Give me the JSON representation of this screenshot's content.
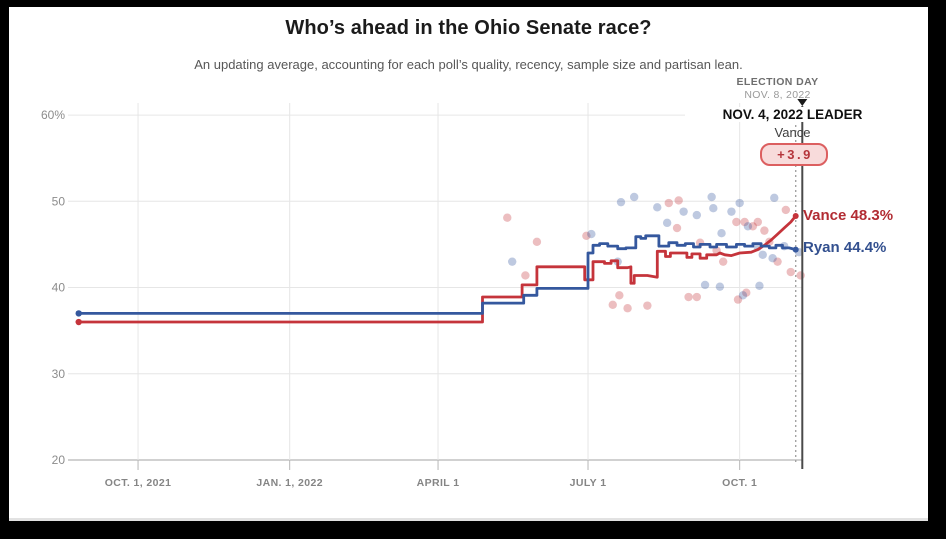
{
  "header": {
    "title": "Who’s ahead in the Ohio Senate race?",
    "subtitle": "An updating average, accounting for each poll’s quality, recency, sample size and partisan lean."
  },
  "colors": {
    "vance_line": "#c5343b",
    "ryan_line": "#35589e",
    "grid": "#e6e6e6",
    "axis": "#c2c2c2",
    "dotted_vline": "#a3a3a3",
    "solid_vline": "#4a4a4a"
  },
  "chart_data": {
    "type": "line",
    "title": "Who’s ahead in the Ohio Senate race?",
    "subtitle": "An updating average, accounting for each poll’s quality, recency, sample size and partisan lean.",
    "x_axis": {
      "unit": "days since Aug 1, 2021",
      "domain": [
        18.5,
        464
      ],
      "ticks": [
        {
          "t": 61,
          "label": "OCT. 1, 2021"
        },
        {
          "t": 153,
          "label": "JAN. 1, 2022"
        },
        {
          "t": 243,
          "label": "APRIL 1"
        },
        {
          "t": 334,
          "label": "JULY 1"
        },
        {
          "t": 426,
          "label": "OCT. 1"
        }
      ]
    },
    "y_axis": {
      "unit": "percent",
      "domain": [
        20,
        61.4
      ],
      "ticks": [
        {
          "v": 60,
          "label": "60%"
        },
        {
          "v": 50,
          "label": "50"
        },
        {
          "v": 40,
          "label": "40"
        },
        {
          "v": 30,
          "label": "30"
        },
        {
          "v": 20,
          "label": "20"
        }
      ]
    },
    "vlines": {
      "dotted_t": 460,
      "solid_t": 464
    },
    "annotations": {
      "election_day": {
        "line1": "ELECTION DAY",
        "line2": "NOV. 8, 2022"
      },
      "leader": {
        "title": "NOV. 4, 2022 LEADER",
        "name": "Vance",
        "margin": "+3.9"
      }
    },
    "series": [
      {
        "name": "Vance",
        "color": "#c5343b",
        "end_label": "Vance 48.3%",
        "final_value": 48.3,
        "points": [
          [
            25,
            36
          ],
          [
            270,
            36
          ],
          [
            270,
            38.9
          ],
          [
            294,
            38.9
          ],
          [
            294,
            40.3
          ],
          [
            303,
            40.3
          ],
          [
            303,
            42.4
          ],
          [
            332,
            42.4
          ],
          [
            332,
            40.9
          ],
          [
            337,
            40.9
          ],
          [
            337,
            43.0
          ],
          [
            344,
            43.0
          ],
          [
            344,
            42.8
          ],
          [
            348,
            42.8
          ],
          [
            348,
            43.1
          ],
          [
            352,
            43.1
          ],
          [
            352,
            42.3
          ],
          [
            358,
            42.3
          ],
          [
            360,
            42.4
          ],
          [
            360,
            40.5
          ],
          [
            362,
            40.5
          ],
          [
            362,
            41.4
          ],
          [
            370,
            41.4
          ],
          [
            376,
            41.2
          ],
          [
            376,
            44.2
          ],
          [
            381,
            44.2
          ],
          [
            381,
            43.6
          ],
          [
            384,
            43.6
          ],
          [
            384,
            44.0
          ],
          [
            394,
            44.0
          ],
          [
            394,
            43.5
          ],
          [
            397,
            43.5
          ],
          [
            397,
            43.9
          ],
          [
            402,
            43.9
          ],
          [
            402,
            43.4
          ],
          [
            406,
            43.4
          ],
          [
            406,
            43.8
          ],
          [
            412,
            43.8
          ],
          [
            414,
            44.0
          ],
          [
            417,
            43.8
          ],
          [
            421,
            43.7
          ],
          [
            426,
            44.0
          ],
          [
            433,
            44.1
          ],
          [
            437,
            44.4
          ],
          [
            441,
            44.9
          ],
          [
            445,
            45.5
          ],
          [
            449,
            46.2
          ],
          [
            453,
            46.9
          ],
          [
            457,
            47.6
          ],
          [
            460,
            48.3
          ]
        ]
      },
      {
        "name": "Ryan",
        "color": "#35589e",
        "end_label": "Ryan 44.4%",
        "final_value": 44.4,
        "points": [
          [
            25,
            37
          ],
          [
            270,
            37
          ],
          [
            270,
            38.2
          ],
          [
            295,
            38.2
          ],
          [
            295,
            39.1
          ],
          [
            303,
            39.1
          ],
          [
            303,
            39.9
          ],
          [
            334,
            39.9
          ],
          [
            334,
            44.0
          ],
          [
            337,
            44.0
          ],
          [
            337,
            44.9
          ],
          [
            341,
            44.9
          ],
          [
            341,
            45.1
          ],
          [
            346,
            45.1
          ],
          [
            346,
            44.8
          ],
          [
            352,
            44.8
          ],
          [
            352,
            44.5
          ],
          [
            357,
            44.5
          ],
          [
            357,
            44.6
          ],
          [
            363,
            44.6
          ],
          [
            363,
            45.9
          ],
          [
            366,
            45.9
          ],
          [
            366,
            45.7
          ],
          [
            369,
            45.7
          ],
          [
            369,
            46.0
          ],
          [
            377,
            46.0
          ],
          [
            377,
            44.8
          ],
          [
            383,
            44.8
          ],
          [
            383,
            45.2
          ],
          [
            388,
            45.2
          ],
          [
            388,
            44.9
          ],
          [
            393,
            44.9
          ],
          [
            393,
            45.1
          ],
          [
            398,
            45.1
          ],
          [
            398,
            44.7
          ],
          [
            402,
            44.7
          ],
          [
            402,
            45.0
          ],
          [
            408,
            45.0
          ],
          [
            408,
            44.7
          ],
          [
            412,
            44.7
          ],
          [
            412,
            45.0
          ],
          [
            418,
            45.0
          ],
          [
            418,
            44.7
          ],
          [
            424,
            44.7
          ],
          [
            424,
            45.0
          ],
          [
            429,
            45.0
          ],
          [
            429,
            44.8
          ],
          [
            434,
            44.8
          ],
          [
            434,
            45.1
          ],
          [
            439,
            45.1
          ],
          [
            439,
            44.8
          ],
          [
            444,
            44.8
          ],
          [
            444,
            44.6
          ],
          [
            448,
            44.6
          ],
          [
            448,
            44.9
          ],
          [
            452,
            44.9
          ],
          [
            452,
            44.6
          ],
          [
            456,
            44.6
          ],
          [
            460,
            44.4
          ]
        ]
      }
    ],
    "scatter": {
      "opacity": 0.32,
      "radius": 4.2,
      "vance_polls": [
        [
          285,
          48.1
        ],
        [
          296,
          41.4
        ],
        [
          303,
          45.3
        ],
        [
          333,
          46.0
        ],
        [
          349,
          38.0
        ],
        [
          353,
          39.1
        ],
        [
          358,
          37.6
        ],
        [
          370,
          37.9
        ],
        [
          383,
          49.8
        ],
        [
          389,
          50.1
        ],
        [
          388,
          46.9
        ],
        [
          395,
          38.9
        ],
        [
          400,
          38.9
        ],
        [
          402,
          45.2
        ],
        [
          412,
          44.3
        ],
        [
          416,
          43.0
        ],
        [
          424,
          47.6
        ],
        [
          425,
          38.6
        ],
        [
          429,
          47.6
        ],
        [
          430,
          39.4
        ],
        [
          434,
          47.1
        ],
        [
          437,
          47.6
        ],
        [
          441,
          46.6
        ],
        [
          444,
          45.3
        ],
        [
          449,
          43.0
        ],
        [
          454,
          49.0
        ],
        [
          457,
          41.8
        ],
        [
          463,
          41.4
        ]
      ],
      "ryan_polls": [
        [
          288,
          43.0
        ],
        [
          336,
          46.2
        ],
        [
          352,
          43.0
        ],
        [
          354,
          49.9
        ],
        [
          362,
          50.5
        ],
        [
          376,
          49.3
        ],
        [
          382,
          47.5
        ],
        [
          392,
          48.8
        ],
        [
          400,
          48.4
        ],
        [
          405,
          40.3
        ],
        [
          409,
          50.5
        ],
        [
          410,
          49.2
        ],
        [
          414,
          40.1
        ],
        [
          415,
          46.3
        ],
        [
          421,
          48.8
        ],
        [
          426,
          49.8
        ],
        [
          428,
          39.1
        ],
        [
          431,
          47.1
        ],
        [
          437,
          44.7
        ],
        [
          438,
          40.2
        ],
        [
          440,
          43.8
        ],
        [
          446,
          43.4
        ],
        [
          447,
          50.4
        ],
        [
          453,
          44.8
        ],
        [
          462,
          44.1
        ]
      ]
    }
  }
}
